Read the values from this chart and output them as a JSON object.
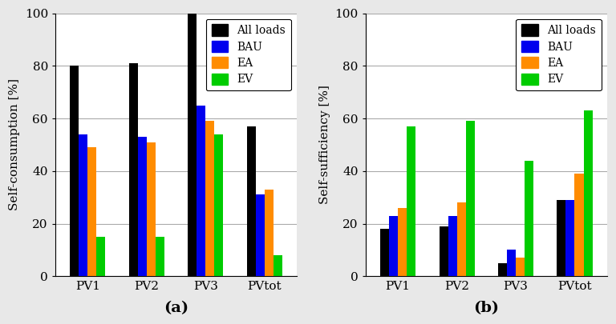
{
  "categories": [
    "PV1",
    "PV2",
    "PV3",
    "PVtot"
  ],
  "chart_a": {
    "title_label": "(a)",
    "ylabel": "Self-consumption [%]",
    "ylim": [
      0,
      100
    ],
    "yticks": [
      0,
      20,
      40,
      60,
      80,
      100
    ],
    "series": {
      "All loads": [
        80,
        81,
        100,
        57
      ],
      "BAU": [
        54,
        53,
        65,
        31
      ],
      "EA": [
        49,
        51,
        59,
        33
      ],
      "EV": [
        15,
        15,
        54,
        8
      ]
    }
  },
  "chart_b": {
    "title_label": "(b)",
    "ylabel": "Self-sufficiency [%]",
    "ylim": [
      0,
      100
    ],
    "yticks": [
      0,
      20,
      40,
      60,
      80,
      100
    ],
    "series": {
      "All loads": [
        18,
        19,
        5,
        29
      ],
      "BAU": [
        23,
        23,
        10,
        29
      ],
      "EA": [
        26,
        28,
        7,
        39
      ],
      "EV": [
        57,
        59,
        44,
        63
      ]
    }
  },
  "colors": {
    "All loads": "#000000",
    "BAU": "#0000ee",
    "EA": "#ff8c00",
    "EV": "#00cc00"
  },
  "legend_order": [
    "All loads",
    "BAU",
    "EA",
    "EV"
  ],
  "bar_width": 0.15,
  "fig_bgcolor": "#e8e8e8",
  "plot_bgcolor": "#ffffff"
}
